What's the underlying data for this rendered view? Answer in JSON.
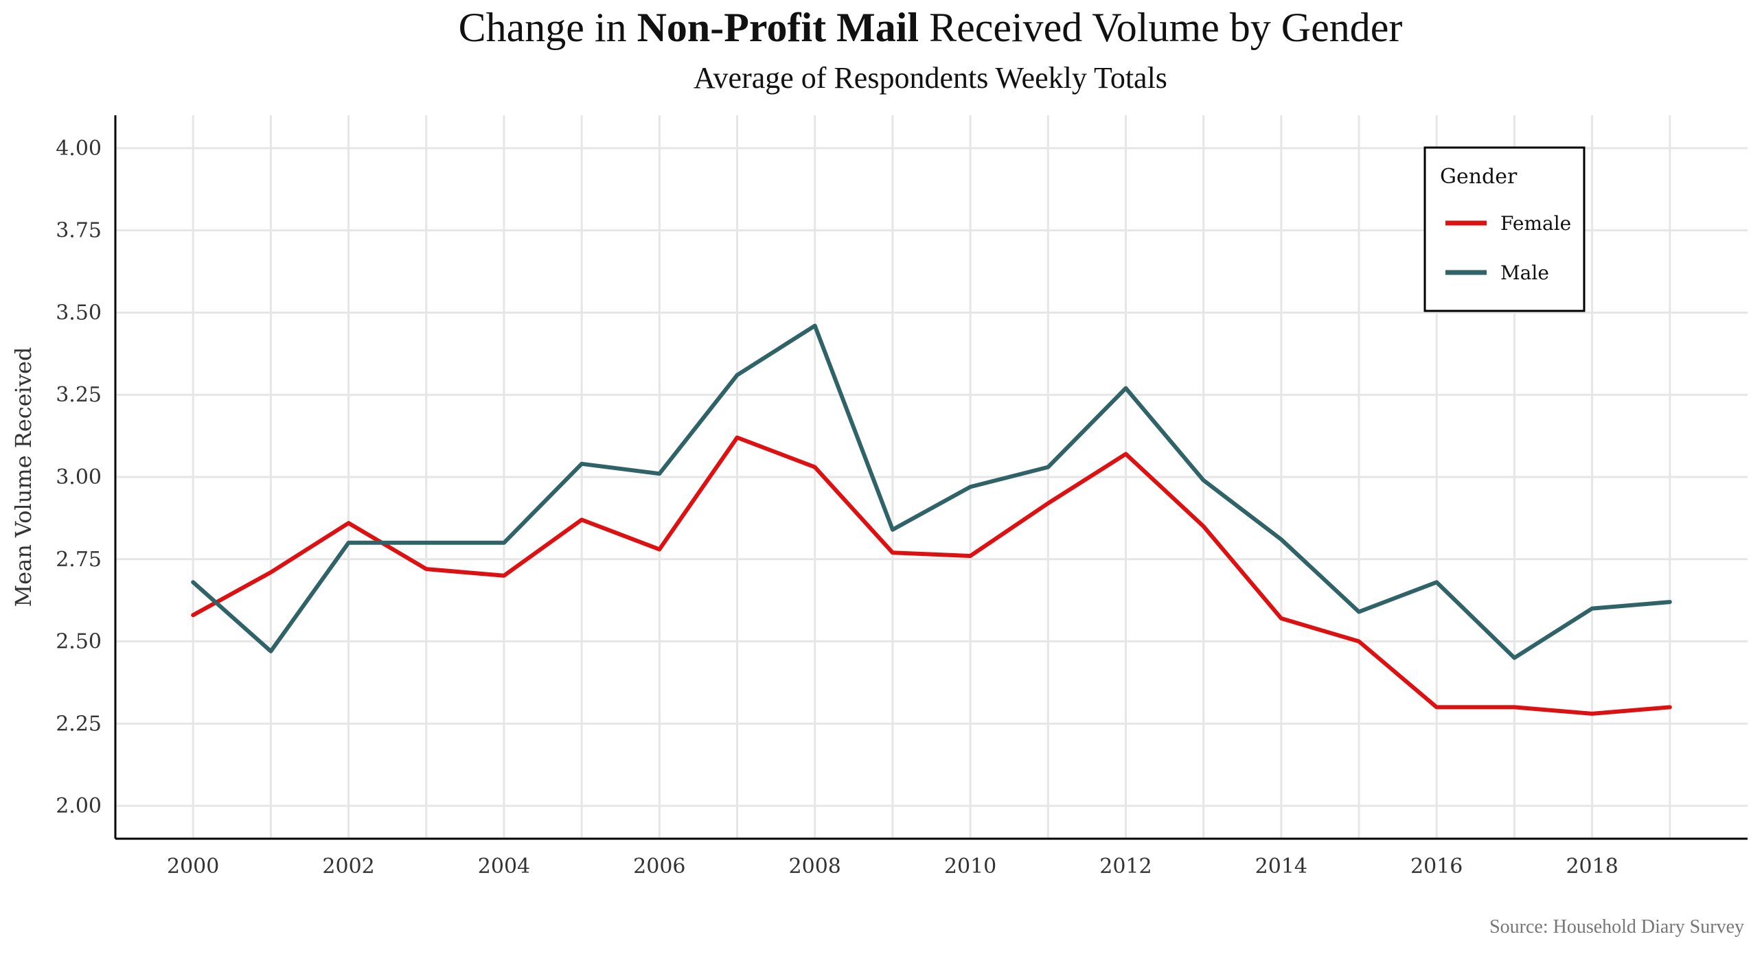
{
  "title": {
    "prefix": "Change in ",
    "bold": "Non-Profit Mail",
    "suffix": " Received Volume by Gender"
  },
  "subtitle": "Average of Respondents Weekly Totals",
  "source": "Source: Household Diary Survey",
  "chart_data": {
    "type": "line",
    "title": "Change in Non-Profit Mail Received Volume by Gender",
    "subtitle": "Average of Respondents Weekly Totals",
    "xlabel": "",
    "ylabel": "Mean Volume Received",
    "x": [
      2000,
      2001,
      2002,
      2003,
      2004,
      2005,
      2006,
      2007,
      2008,
      2009,
      2010,
      2011,
      2012,
      2013,
      2014,
      2015,
      2016,
      2017,
      2018,
      2019
    ],
    "xlim": [
      1999,
      2020
    ],
    "x_ticks": [
      "2000",
      "2002",
      "2004",
      "2006",
      "2008",
      "2010",
      "2012",
      "2014",
      "2016",
      "2018"
    ],
    "ylim": [
      1.9,
      4.1
    ],
    "y_ticks": [
      "2.00",
      "2.25",
      "2.50",
      "2.75",
      "3.00",
      "3.25",
      "3.50",
      "3.75",
      "4.00"
    ],
    "grid": true,
    "legend": {
      "title": "Gender",
      "position": "top-right"
    },
    "series": [
      {
        "name": "Female",
        "color": "#dd1111",
        "values": [
          2.58,
          2.71,
          2.86,
          2.72,
          2.7,
          2.87,
          2.78,
          3.12,
          3.03,
          2.77,
          2.76,
          2.92,
          3.07,
          2.85,
          2.57,
          2.5,
          2.3,
          2.3,
          2.28,
          2.3
        ]
      },
      {
        "name": "Male",
        "color": "#2f6367",
        "values": [
          2.68,
          2.47,
          2.8,
          2.8,
          2.8,
          3.04,
          3.01,
          3.31,
          3.46,
          2.84,
          2.97,
          3.03,
          3.27,
          2.99,
          2.81,
          2.59,
          2.68,
          2.45,
          2.6,
          2.62
        ]
      }
    ]
  }
}
